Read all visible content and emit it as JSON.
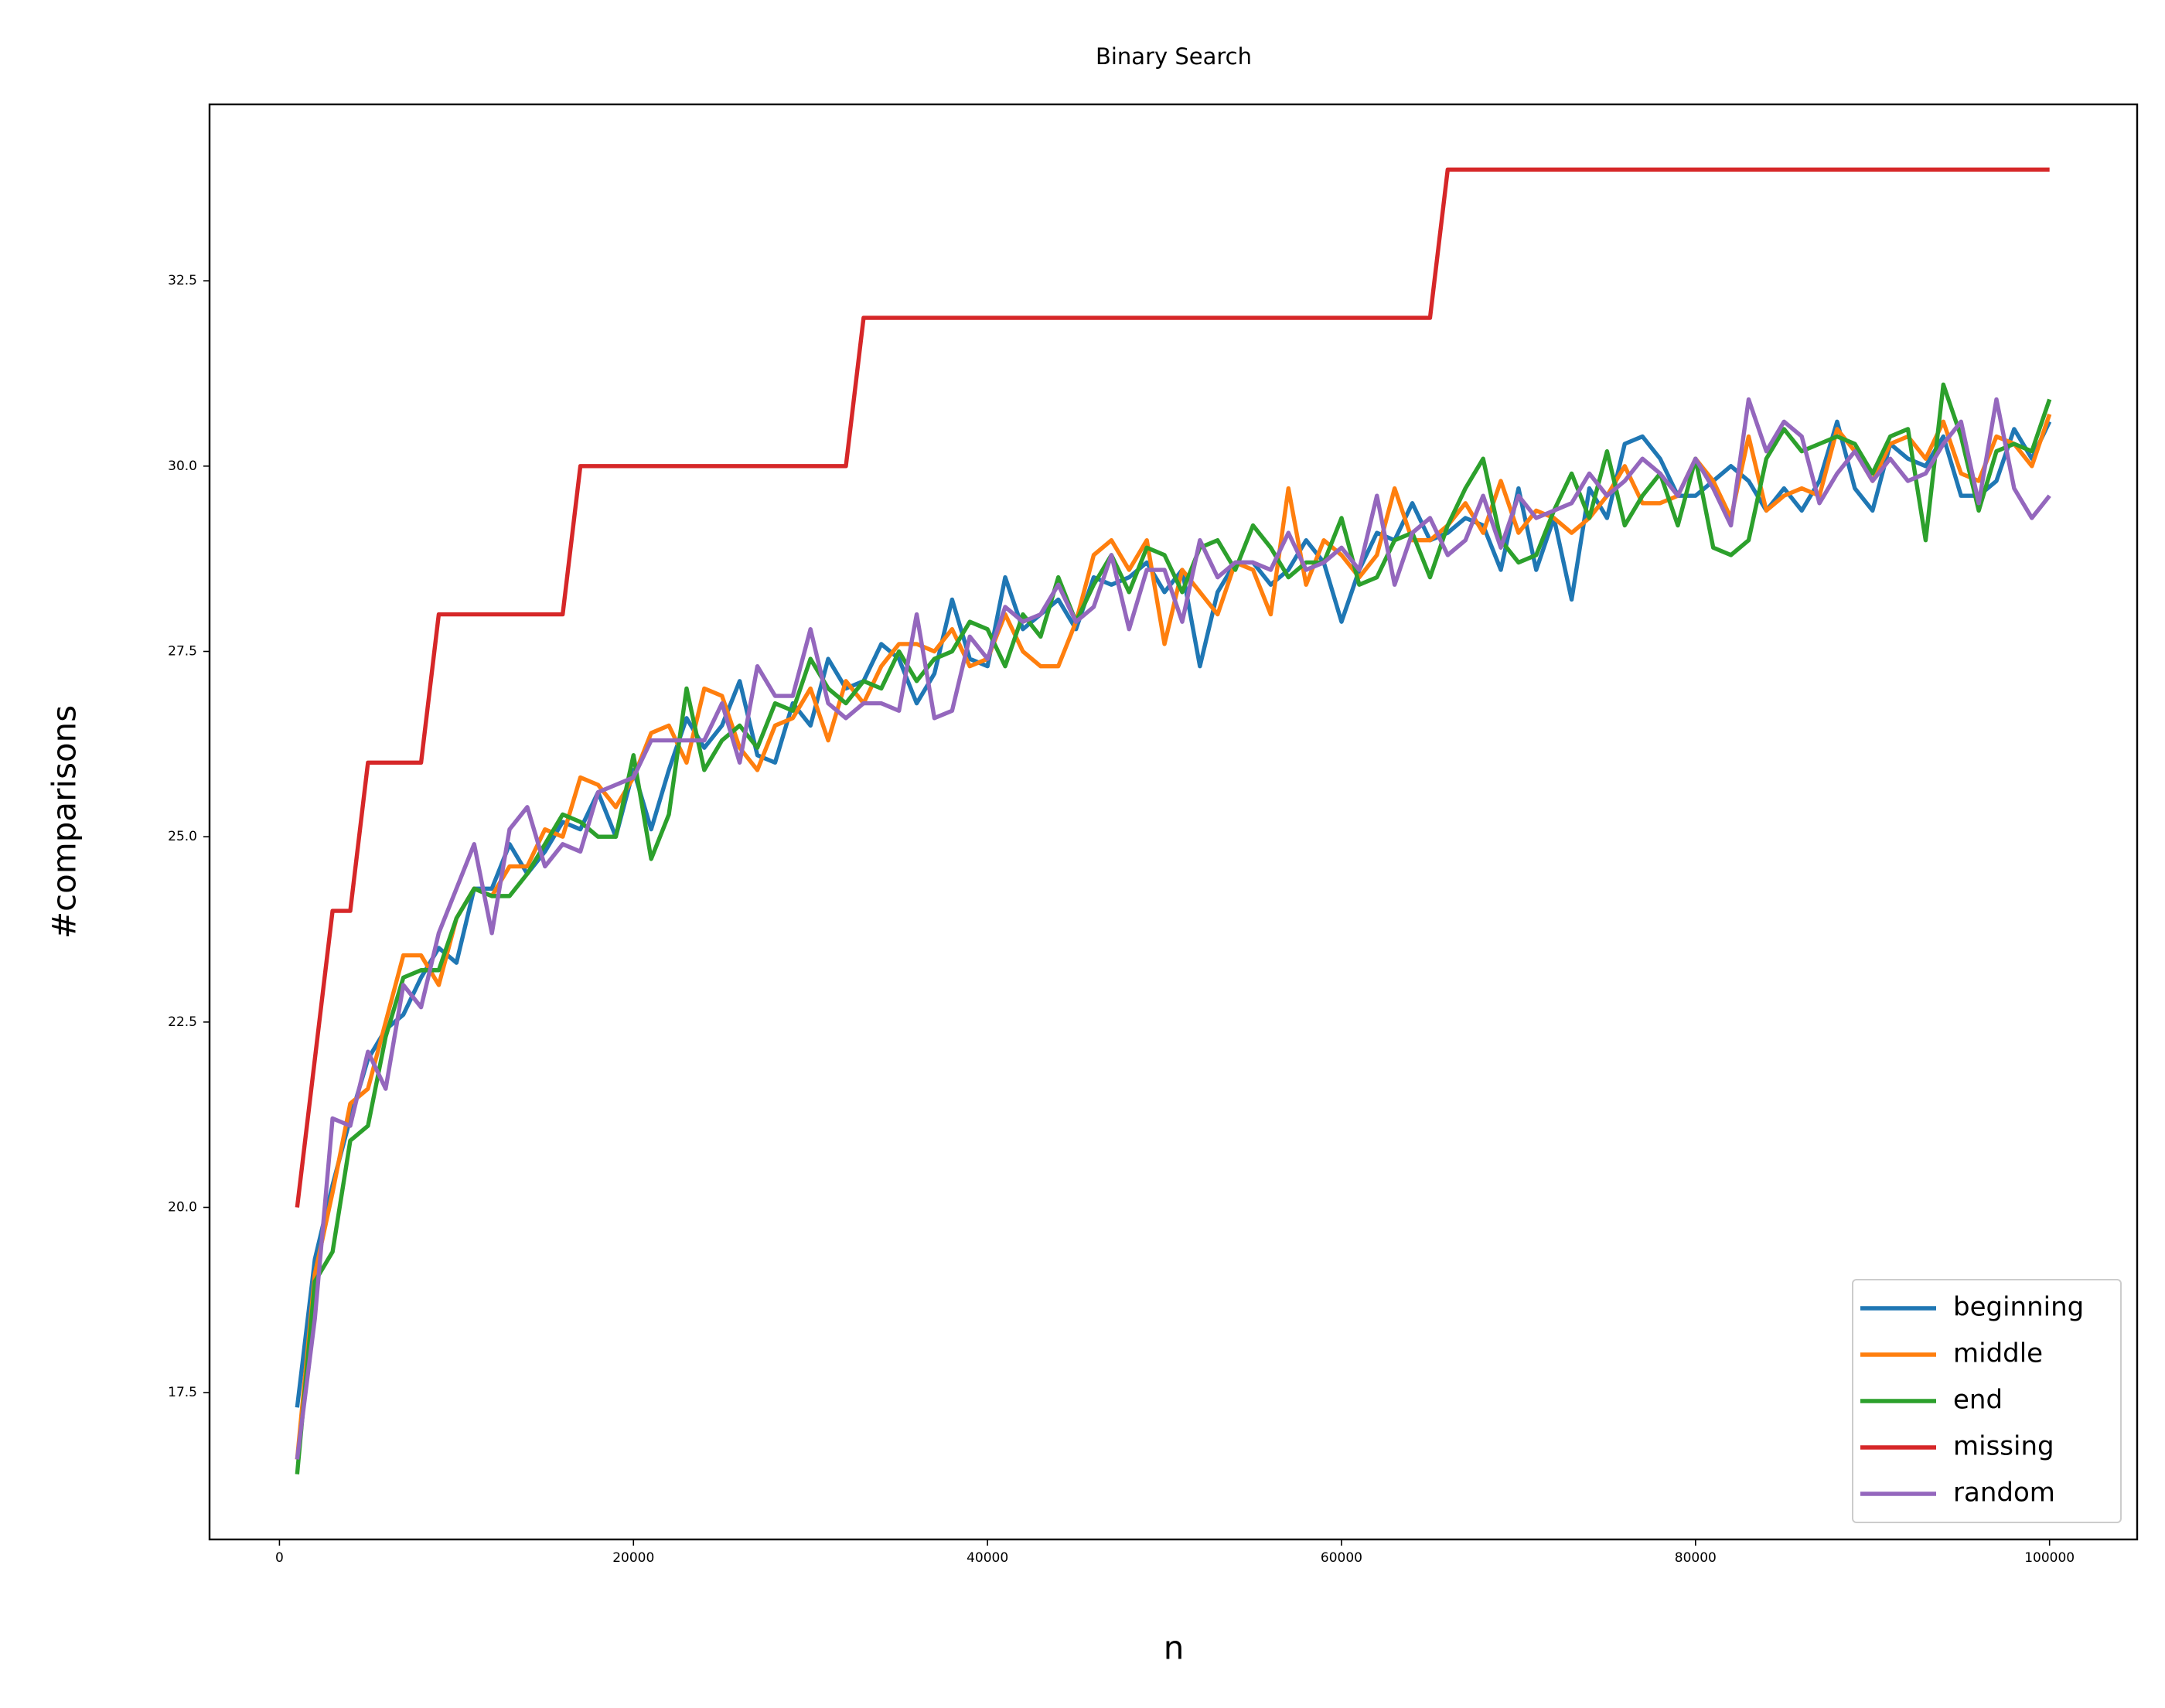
{
  "chart_data": {
    "type": "line",
    "title": "Binary Search",
    "x_label": "n",
    "y_label": "#comparisons",
    "x": [
      1000,
      2000,
      3000,
      4000,
      5000,
      6000,
      7000,
      8000,
      9000,
      10000,
      11000,
      12000,
      13000,
      14000,
      15000,
      16000,
      17000,
      18000,
      19000,
      20000,
      21000,
      22000,
      23000,
      24000,
      25000,
      26000,
      27000,
      28000,
      29000,
      30000,
      31000,
      32000,
      33000,
      34000,
      35000,
      36000,
      37000,
      38000,
      39000,
      40000,
      41000,
      42000,
      43000,
      44000,
      45000,
      46000,
      47000,
      48000,
      49000,
      50000,
      51000,
      52000,
      53000,
      54000,
      55000,
      56000,
      57000,
      58000,
      59000,
      60000,
      61000,
      62000,
      63000,
      64000,
      65000,
      66000,
      67000,
      68000,
      69000,
      70000,
      71000,
      72000,
      73000,
      74000,
      75000,
      76000,
      77000,
      78000,
      79000,
      80000,
      81000,
      82000,
      83000,
      84000,
      85000,
      86000,
      87000,
      88000,
      89000,
      90000,
      91000,
      92000,
      93000,
      94000,
      95000,
      96000,
      97000,
      98000,
      99000,
      100000
    ],
    "series": [
      {
        "name": "beginning",
        "color": "#1f77b4",
        "values": [
          17.3,
          19.3,
          20.3,
          21.2,
          22.0,
          22.4,
          22.6,
          23.1,
          23.5,
          23.3,
          24.3,
          24.3,
          24.9,
          24.5,
          24.8,
          25.2,
          25.1,
          25.6,
          25.0,
          25.9,
          25.1,
          25.9,
          26.6,
          26.2,
          26.5,
          27.1,
          26.1,
          26.0,
          26.8,
          26.5,
          27.4,
          27.0,
          27.1,
          27.6,
          27.4,
          26.8,
          27.2,
          28.2,
          27.4,
          27.3,
          28.5,
          27.8,
          28.0,
          28.2,
          27.8,
          28.5,
          28.4,
          28.5,
          28.7,
          28.3,
          28.6,
          27.3,
          28.3,
          28.7,
          28.7,
          28.4,
          28.6,
          29.0,
          28.7,
          27.9,
          28.6,
          29.1,
          29.0,
          29.5,
          29.0,
          29.1,
          29.3,
          29.2,
          28.6,
          29.7,
          28.6,
          29.3,
          28.2,
          29.7,
          29.3,
          30.3,
          30.4,
          30.1,
          29.6,
          29.6,
          29.8,
          30.0,
          29.8,
          29.4,
          29.7,
          29.4,
          29.8,
          30.6,
          29.7,
          29.4,
          30.3,
          30.1,
          30.0,
          30.4,
          29.6,
          29.6,
          29.8,
          30.5,
          30.1,
          30.6
        ]
      },
      {
        "name": "middle",
        "color": "#ff7f0e",
        "values": [
          16.6,
          19.1,
          20.2,
          21.4,
          21.6,
          22.5,
          23.4,
          23.4,
          23.0,
          23.9,
          24.3,
          24.2,
          24.6,
          24.6,
          25.1,
          25.0,
          25.8,
          25.7,
          25.4,
          25.8,
          26.4,
          26.5,
          26.0,
          27.0,
          26.9,
          26.2,
          25.9,
          26.5,
          26.6,
          27.0,
          26.3,
          27.1,
          26.8,
          27.3,
          27.6,
          27.6,
          27.5,
          27.8,
          27.3,
          27.4,
          28.0,
          27.5,
          27.3,
          27.3,
          27.9,
          28.8,
          29.0,
          28.6,
          29.0,
          27.6,
          28.6,
          28.3,
          28.0,
          28.7,
          28.6,
          28.0,
          29.7,
          28.4,
          29.0,
          28.8,
          28.5,
          28.8,
          29.7,
          29.0,
          29.0,
          29.2,
          29.5,
          29.1,
          29.8,
          29.1,
          29.4,
          29.3,
          29.1,
          29.3,
          29.6,
          30.0,
          29.5,
          29.5,
          29.6,
          30.1,
          29.8,
          29.3,
          30.4,
          29.4,
          29.6,
          29.7,
          29.6,
          30.5,
          30.2,
          29.8,
          30.3,
          30.4,
          30.1,
          30.6,
          29.9,
          29.8,
          30.4,
          30.3,
          30.0,
          30.7
        ]
      },
      {
        "name": "end",
        "color": "#2ca02c",
        "values": [
          16.4,
          19.0,
          19.4,
          20.9,
          21.1,
          22.3,
          23.1,
          23.2,
          23.2,
          23.9,
          24.3,
          24.2,
          24.2,
          24.5,
          24.9,
          25.3,
          25.2,
          25.0,
          25.0,
          26.1,
          24.7,
          25.3,
          27.0,
          25.9,
          26.3,
          26.5,
          26.2,
          26.8,
          26.7,
          27.4,
          27.0,
          26.8,
          27.1,
          27.0,
          27.5,
          27.1,
          27.4,
          27.5,
          27.9,
          27.8,
          27.3,
          28.0,
          27.7,
          28.5,
          27.9,
          28.4,
          28.8,
          28.3,
          28.9,
          28.8,
          28.3,
          28.9,
          29.0,
          28.6,
          29.2,
          28.9,
          28.5,
          28.7,
          28.7,
          29.3,
          28.4,
          28.5,
          29.0,
          29.1,
          28.5,
          29.2,
          29.7,
          30.1,
          29.0,
          28.7,
          28.8,
          29.4,
          29.9,
          29.3,
          30.2,
          29.2,
          29.6,
          29.9,
          29.2,
          30.1,
          28.9,
          28.8,
          29.0,
          30.1,
          30.5,
          30.2,
          30.3,
          30.4,
          30.3,
          29.9,
          30.4,
          30.5,
          29.0,
          31.1,
          30.4,
          29.4,
          30.2,
          30.3,
          30.2,
          30.9
        ]
      },
      {
        "name": "missing",
        "color": "#d62728",
        "values": [
          20,
          22,
          24,
          24,
          26,
          26,
          26,
          26,
          28,
          28,
          28,
          28,
          28,
          28,
          28,
          28,
          30,
          30,
          30,
          30,
          30,
          30,
          30,
          30,
          30,
          30,
          30,
          30,
          30,
          30,
          30,
          30,
          32,
          32,
          32,
          32,
          32,
          32,
          32,
          32,
          32,
          32,
          32,
          32,
          32,
          32,
          32,
          32,
          32,
          32,
          32,
          32,
          32,
          32,
          32,
          32,
          32,
          32,
          32,
          32,
          32,
          32,
          32,
          32,
          32,
          34,
          34,
          34,
          34,
          34,
          34,
          34,
          34,
          34,
          34,
          34,
          34,
          34,
          34,
          34,
          34,
          34,
          34,
          34,
          34,
          34,
          34,
          34,
          34,
          34,
          34,
          34,
          34,
          34,
          34,
          34,
          34,
          34,
          34,
          34
        ]
      },
      {
        "name": "random",
        "color": "#9467bd",
        "values": [
          16.6,
          18.5,
          21.2,
          21.1,
          22.1,
          21.6,
          23.0,
          22.7,
          23.7,
          24.3,
          24.9,
          23.7,
          25.1,
          25.4,
          24.6,
          24.9,
          24.8,
          25.6,
          25.7,
          25.8,
          26.3,
          26.3,
          26.3,
          26.3,
          26.8,
          26.0,
          27.3,
          26.9,
          26.9,
          27.8,
          26.8,
          26.6,
          26.8,
          26.8,
          26.7,
          28.0,
          26.6,
          26.7,
          27.7,
          27.4,
          28.1,
          27.9,
          28.0,
          28.4,
          27.9,
          28.1,
          28.8,
          27.8,
          28.6,
          28.6,
          27.9,
          29.0,
          28.5,
          28.7,
          28.7,
          28.6,
          29.1,
          28.6,
          28.7,
          28.9,
          28.6,
          29.6,
          28.4,
          29.1,
          29.3,
          28.8,
          29.0,
          29.6,
          28.9,
          29.6,
          29.3,
          29.4,
          29.5,
          29.9,
          29.6,
          29.8,
          30.1,
          29.9,
          29.6,
          30.1,
          29.7,
          29.2,
          30.9,
          30.2,
          30.6,
          30.4,
          29.5,
          29.9,
          30.2,
          29.8,
          30.1,
          29.8,
          29.9,
          30.3,
          30.6,
          29.5,
          30.9,
          29.7,
          29.3,
          29.6
        ]
      }
    ],
    "xlim": [
      -3950,
      104950
    ],
    "ylim": [
      15.52,
      34.88
    ],
    "xticks": [
      0,
      20000,
      40000,
      60000,
      80000,
      100000
    ],
    "yticks": [
      17.5,
      {
        "value": 20,
        "label": "20.0"
      },
      22.5,
      {
        "value": 25,
        "label": "25.0"
      },
      27.5,
      {
        "value": 30,
        "label": "30.0"
      },
      32.5
    ],
    "legend": "lower right"
  }
}
